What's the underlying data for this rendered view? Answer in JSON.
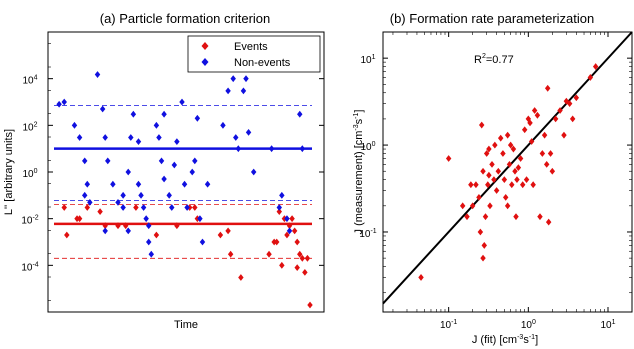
{
  "chart_data": [
    {
      "type": "scatter",
      "title": "(a) Particle formation criterion",
      "xlabel": "Time",
      "ylabel": "L'' [arbitrary units]",
      "yscale": "log",
      "ylim": [
        1e-06,
        1000000
      ],
      "yticks": [
        {
          "value": 0.0001,
          "base": "10",
          "exp": "-4"
        },
        {
          "value": 0.01,
          "base": "10",
          "exp": "-2"
        },
        {
          "value": 1,
          "base": "10",
          "exp": "0"
        },
        {
          "value": 100,
          "base": "10",
          "exp": "2"
        },
        {
          "value": 10000,
          "base": "10",
          "exp": "4"
        }
      ],
      "xlim": [
        0,
        1
      ],
      "legend": {
        "position": "top-right"
      },
      "series": [
        {
          "name": "Events",
          "color": "#e01010",
          "x": [
            0.04,
            0.05,
            0.09,
            0.1,
            0.13,
            0.18,
            0.2,
            0.25,
            0.28,
            0.32,
            0.4,
            0.48,
            0.53,
            0.55,
            0.56,
            0.65,
            0.68,
            0.69,
            0.73,
            0.84,
            0.86,
            0.88,
            0.9,
            0.91,
            0.92,
            0.93,
            0.94,
            0.95,
            0.96,
            0.97,
            0.98,
            0.99,
            1.0,
            0.87,
            0.89,
            0.95
          ],
          "y": [
            0.03,
            0.002,
            0.01,
            0.01,
            0.03,
            0.02,
            0.005,
            0.005,
            0.005,
            0.03,
            0.002,
            0.005,
            0.03,
            0.03,
            0.01,
            0.002,
            0.003,
            0.0003,
            3e-05,
            0.0003,
            0.001,
            0.02,
            0.01,
            0.002,
            0.005,
            0.01,
            0.003,
            0.001,
            0.0003,
            0.0002,
            5e-05,
            0.0002,
            2e-06,
            0.001,
            0.0001,
            8e-05
          ]
        },
        {
          "name": "Non-events",
          "color": "#1010e0",
          "x": [
            0.02,
            0.04,
            0.08,
            0.1,
            0.12,
            0.13,
            0.14,
            0.17,
            0.19,
            0.2,
            0.21,
            0.23,
            0.25,
            0.27,
            0.29,
            0.3,
            0.31,
            0.33,
            0.34,
            0.35,
            0.36,
            0.37,
            0.38,
            0.4,
            0.41,
            0.42,
            0.43,
            0.45,
            0.46,
            0.47,
            0.48,
            0.51,
            0.52,
            0.54,
            0.55,
            0.56,
            0.57,
            0.58,
            0.6,
            0.66,
            0.68,
            0.7,
            0.71,
            0.72,
            0.74,
            0.75,
            0.76,
            0.78,
            0.85,
            0.88,
            0.89,
            0.91,
            0.92,
            0.96,
            0.97,
            0.29,
            0.2,
            0.12,
            0.33,
            0.37,
            0.43,
            0.5,
            0.27
          ],
          "y": [
            800,
            1000,
            100,
            30,
            3,
            0.3,
            0.05,
            15000,
            500,
            30,
            3,
            0.3,
            0.05,
            0.03,
            1,
            30,
            300,
            0.3,
            0.1,
            0.03,
            0.01,
            0.001,
            0.0003,
            100,
            30,
            3,
            0.5,
            0.1,
            0.03,
            2,
            20,
            0.3,
            0.03,
            1,
            3,
            200,
            0.01,
            0.001,
            0.3,
            100,
            3000,
            10000,
            30,
            10,
            3000,
            10000,
            50,
            1,
            10,
            0.03,
            0.1,
            0.01,
            0.003,
            300,
            10,
            0.003,
            0.003,
            0.1,
            20,
            0.005,
            300,
            1000,
            0.1
          ]
        }
      ],
      "hlines": [
        {
          "value": 10,
          "color": "#1010e0",
          "style": "solid"
        },
        {
          "value": 700,
          "color": "#1010e0",
          "style": "dashed"
        },
        {
          "value": 0.06,
          "color": "#1010e0",
          "style": "dashed"
        },
        {
          "value": 0.006,
          "color": "#e01010",
          "style": "solid"
        },
        {
          "value": 0.04,
          "color": "#e01010",
          "style": "dashed"
        },
        {
          "value": 0.0002,
          "color": "#e01010",
          "style": "dashed"
        }
      ]
    },
    {
      "type": "scatter",
      "title": "(b) Formation rate parameterization",
      "xlabel": "J (fit) [cm-3s-1]",
      "ylabel": "J (measurement) [cm-3s-1]",
      "xscale": "log",
      "yscale": "log",
      "xlim": [
        0.015,
        20
      ],
      "ylim": [
        0.012,
        20
      ],
      "xticks": [
        {
          "value": 0.1,
          "base": "10",
          "exp": "-1"
        },
        {
          "value": 1,
          "base": "10",
          "exp": "0"
        },
        {
          "value": 10,
          "base": "10",
          "exp": "1"
        }
      ],
      "yticks": [
        {
          "value": 0.1,
          "base": "10",
          "exp": "-1"
        },
        {
          "value": 1,
          "base": "10",
          "exp": "0"
        },
        {
          "value": 10,
          "base": "10",
          "exp": "1"
        }
      ],
      "annotation": {
        "base": "R",
        "exp": "2",
        "rest": "=0.77"
      },
      "fit_line": {
        "from": [
          0.015,
          0.015
        ],
        "to": [
          20,
          20
        ],
        "color": "#000000"
      },
      "series": [
        {
          "name": "",
          "color": "#e01010",
          "x": [
            0.045,
            0.1,
            0.15,
            0.17,
            0.19,
            0.2,
            0.22,
            0.24,
            0.25,
            0.26,
            0.27,
            0.28,
            0.29,
            0.3,
            0.31,
            0.32,
            0.33,
            0.35,
            0.37,
            0.38,
            0.4,
            0.42,
            0.45,
            0.48,
            0.5,
            0.52,
            0.55,
            0.58,
            0.6,
            0.62,
            0.65,
            0.68,
            0.7,
            0.72,
            0.75,
            0.8,
            0.85,
            0.9,
            0.95,
            1.0,
            1.05,
            1.1,
            1.15,
            1.2,
            1.3,
            1.4,
            1.5,
            1.6,
            1.7,
            1.8,
            2.0,
            2.2,
            2.5,
            2.8,
            3.0,
            3.3,
            3.6,
            4.0,
            6.0,
            7.0,
            0.27,
            0.32,
            0.55,
            1.75,
            1.9
          ],
          "y": [
            0.03,
            0.7,
            0.2,
            0.15,
            0.35,
            0.2,
            0.35,
            0.25,
            0.1,
            1.7,
            0.5,
            0.07,
            0.15,
            0.8,
            0.35,
            0.9,
            0.2,
            0.6,
            0.4,
            1.0,
            0.3,
            0.5,
            1.2,
            0.8,
            0.4,
            0.25,
            0.2,
            0.6,
            1.0,
            0.35,
            0.9,
            0.5,
            0.15,
            0.4,
            0.55,
            0.7,
            0.35,
            1.5,
            0.4,
            2.0,
            1.8,
            1.1,
            0.35,
            2.5,
            2.2,
            0.15,
            0.8,
            1.3,
            0.6,
            0.13,
            0.5,
            2.0,
            2.5,
            1.3,
            3.2,
            3.0,
            2.0,
            3.5,
            6.0,
            8.0,
            0.05,
            0.45,
            1.3,
            4.5,
            0.8
          ]
        }
      ]
    }
  ]
}
